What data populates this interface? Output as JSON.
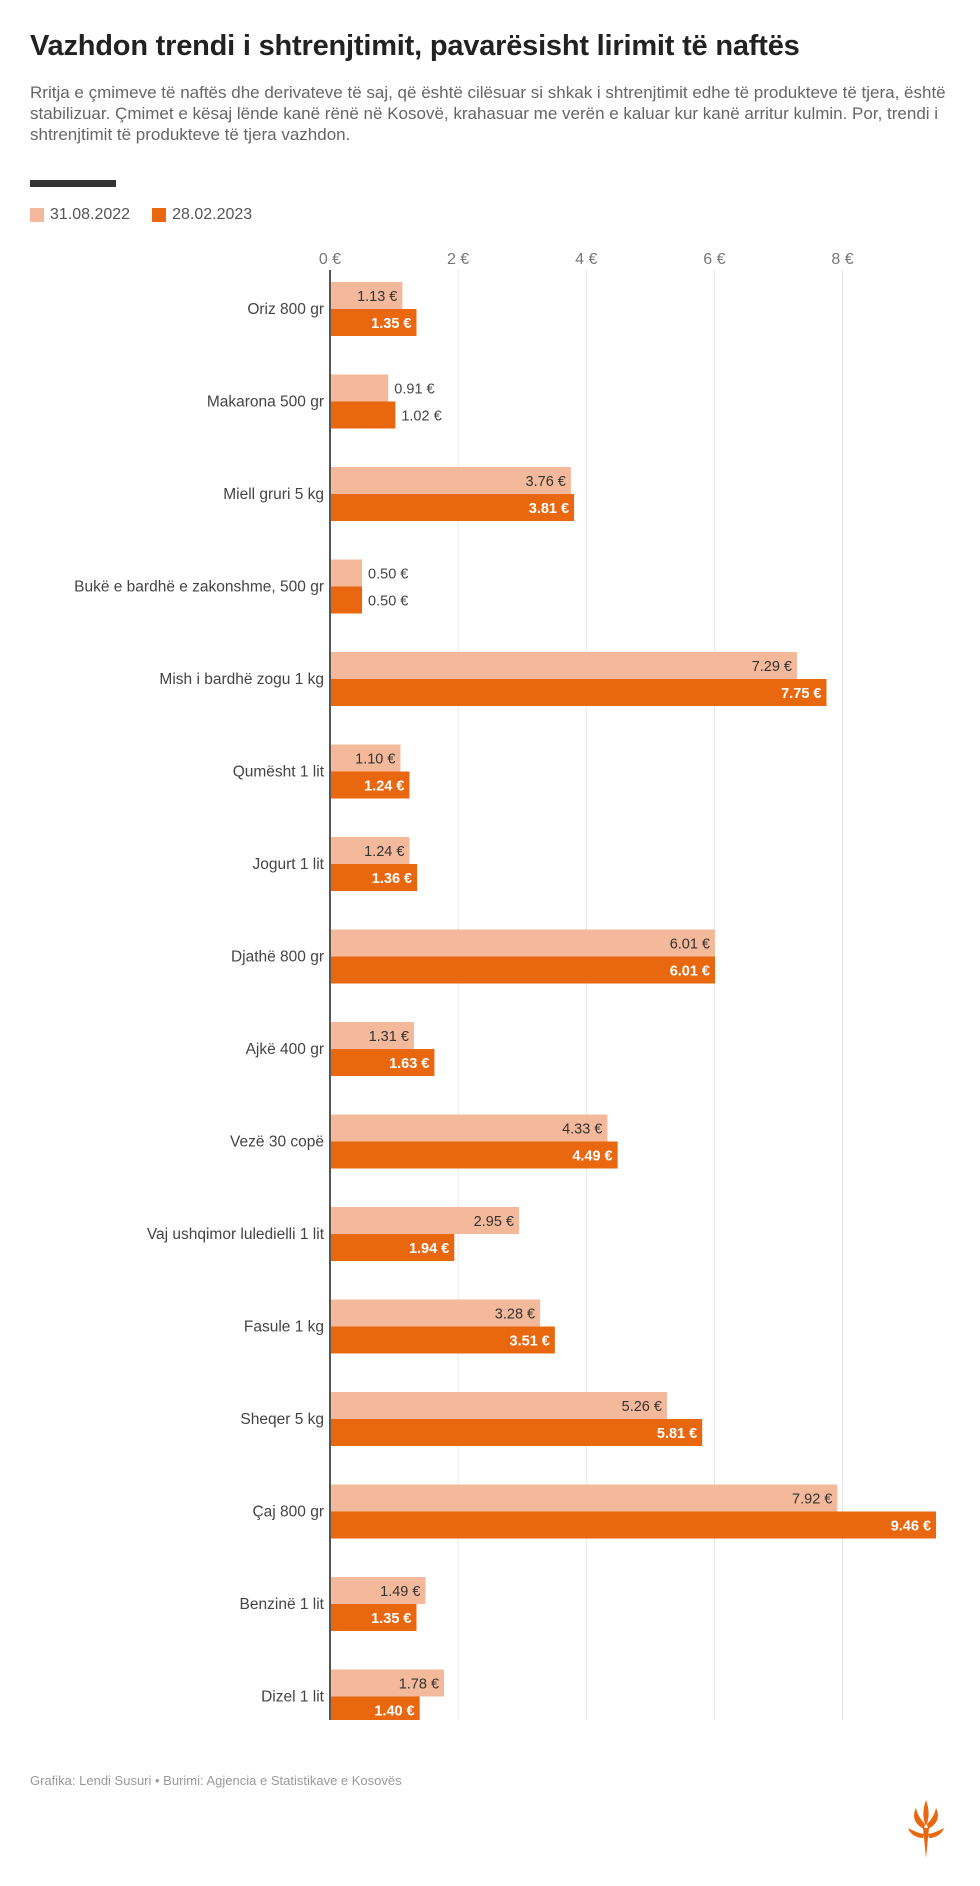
{
  "title": "Vazhdon trendi i shtrenjtimit, pavarësisht lirimit të naftës",
  "subtitle": "Rritja e çmimeve të naftës dhe derivateve të saj, që është cilësuar si shkak i shtrenjtimit edhe të produkteve të tjera, është stabilizuar. Çmimet e kësaj lënde kanë rënë në Kosovë, krahasuar me verën e kaluar kur kanë arritur kulmin. Por, trendi i shtrenjtimit të produkteve të tjera vazhdon.",
  "colors": {
    "series1": "#f4b89a",
    "series2": "#e8670f",
    "axis": "#555555",
    "grid": "#e6e6e6"
  },
  "chart_data": {
    "type": "bar",
    "orientation": "horizontal",
    "categories": [
      "Oriz  800 gr",
      "Makarona 500 gr",
      "Miell gruri 5 kg",
      "Bukë e bardhë e zakonshme, 500 gr",
      "Mish i bardhë zogu 1 kg",
      "Qumësht  1 lit",
      "Jogurt 1 lit",
      "Djathë 800 gr",
      "Ajkë 400 gr",
      "Vezë 30 copë",
      "Vaj ushqimor luledielli 1 lit",
      "Fasule 1 kg",
      "Sheqer 5 kg",
      "Çaj 800 gr",
      "Benzinë 1 lit",
      "Dizel 1 lit"
    ],
    "series": [
      {
        "name": "31.08.2022",
        "values": [
          1.13,
          0.91,
          3.76,
          0.5,
          7.29,
          1.1,
          1.24,
          6.01,
          1.31,
          4.33,
          2.95,
          3.28,
          5.26,
          7.92,
          1.49,
          1.78
        ]
      },
      {
        "name": "28.02.2023",
        "values": [
          1.35,
          1.02,
          3.81,
          0.5,
          7.75,
          1.24,
          1.36,
          6.01,
          1.63,
          4.49,
          1.94,
          3.51,
          5.81,
          9.46,
          1.35,
          1.4
        ]
      }
    ],
    "value_labels": [
      [
        "1.13 €",
        "0.91 €",
        "3.76 €",
        "0.50 €",
        "7.29 €",
        "1.10 €",
        "1.24 €",
        "6.01 €",
        "1.31 €",
        "4.33 €",
        "2.95 €",
        "3.28 €",
        "5.26 €",
        "7.92 €",
        "1.49 €",
        "1.78 €"
      ],
      [
        "1.35 €",
        "1.02 €",
        "3.81 €",
        "0.50 €",
        "7.75 €",
        "1.24 €",
        "1.36 €",
        "6.01 €",
        "1.63 €",
        "4.49 €",
        "1.94 €",
        "3.51 €",
        "5.81 €",
        "9.46 €",
        "1.35 €",
        "1.40 €"
      ]
    ],
    "xticks": [
      0,
      2,
      4,
      6,
      8
    ],
    "xtick_labels": [
      "0 €",
      "2 €",
      "4 €",
      "6 €",
      "8 €"
    ],
    "xlim": [
      0,
      9.6
    ],
    "grid": true,
    "legend_position": "top-left"
  },
  "footer": "Grafika: Lendi Susuri • Burimi: Agjencia e Statistikave e Kosovës",
  "logo_icon": "rfe-torch-logo"
}
